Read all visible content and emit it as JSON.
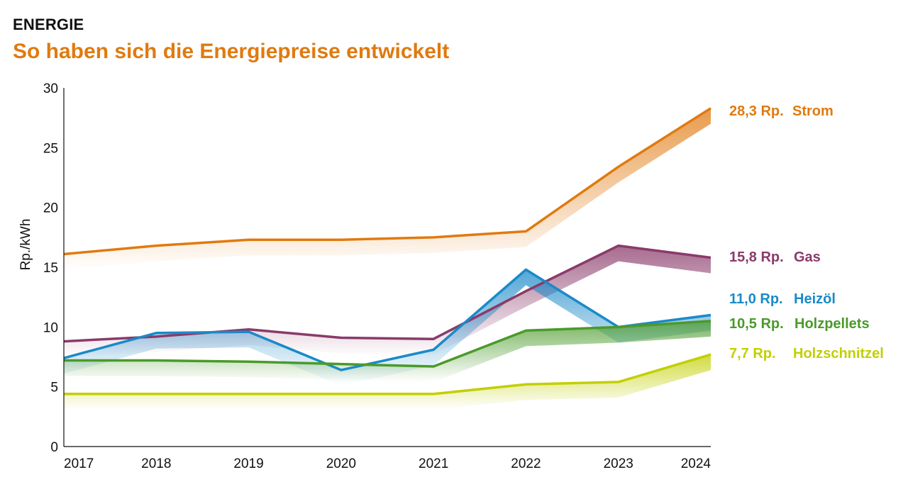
{
  "header": {
    "kicker": "ENERGIE",
    "title": "So haben sich die Energiepreise entwickelt"
  },
  "chart_data": {
    "type": "line",
    "title": "So haben sich die Energiepreise entwickelt",
    "xlabel": "",
    "ylabel": "Rp./kWh",
    "categories": [
      "2017",
      "2018",
      "2019",
      "2020",
      "2021",
      "2022",
      "2023",
      "2024"
    ],
    "ylim": [
      0,
      30
    ],
    "yticks": [
      0,
      5,
      10,
      15,
      20,
      25,
      30
    ],
    "grid": false,
    "legend": "end-labels right",
    "series": [
      {
        "name": "Strom",
        "end_label": "28,3 Rp.",
        "color": "#e07a10",
        "values": [
          16.1,
          16.8,
          17.3,
          17.3,
          17.5,
          18.0,
          23.4,
          28.3
        ]
      },
      {
        "name": "Gas",
        "end_label": "15,8 Rp.",
        "color": "#8a3a6a",
        "values": [
          8.8,
          9.2,
          9.8,
          9.1,
          9.0,
          13.0,
          16.8,
          15.8
        ]
      },
      {
        "name": "Heizöl",
        "end_label": "11,0 Rp.",
        "color": "#1a8ac8",
        "values": [
          7.4,
          9.5,
          9.6,
          6.4,
          8.1,
          14.8,
          10.0,
          11.0
        ]
      },
      {
        "name": "Holzpellets",
        "end_label": "10,5 Rp.",
        "color": "#4a9a2a",
        "values": [
          7.2,
          7.2,
          7.1,
          6.9,
          6.7,
          9.7,
          10.0,
          10.5
        ]
      },
      {
        "name": "Holzschnitzel",
        "end_label": "7,7 Rp.",
        "color": "#c2cf00",
        "values": [
          4.4,
          4.4,
          4.4,
          4.4,
          4.4,
          5.2,
          5.4,
          7.7
        ]
      }
    ]
  }
}
